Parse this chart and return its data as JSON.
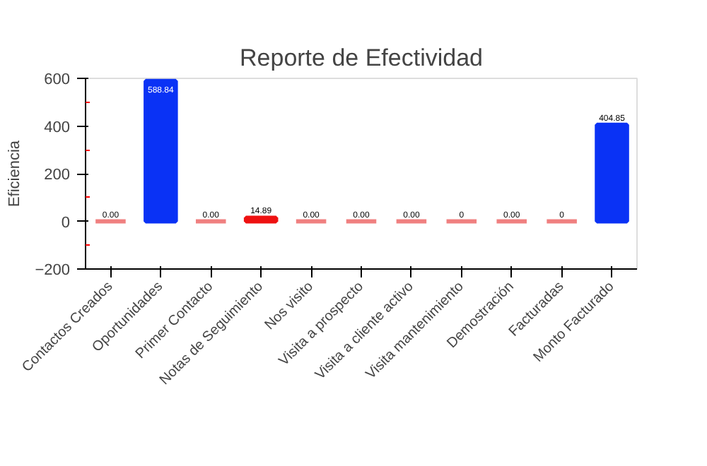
{
  "chart_data": {
    "type": "bar",
    "title": "Reporte de Efectividad",
    "ylabel": "Eficiencia",
    "categories": [
      "Contactos Creados",
      "Oportunidades",
      "Primer Contacto",
      "Notas de Seguimiento",
      "Nos visito",
      "Visita a prospecto",
      "Visita a cliente activo",
      "Visita mantenimiento",
      "Demostración",
      "Facturadas",
      "Monto Facturado"
    ],
    "values": [
      0,
      588.84,
      0,
      14.89,
      0,
      0,
      0,
      0,
      0,
      0,
      404.85
    ],
    "value_labels": [
      "0.00",
      "588.84",
      "0.00",
      "14.89",
      "0.00",
      "0.00",
      "0.00",
      "0",
      "0.00",
      "0",
      "404.85"
    ],
    "colors": [
      "#f08080",
      "#0a32f5",
      "#f08080",
      "#ee1111",
      "#f08080",
      "#f08080",
      "#f08080",
      "#f08080",
      "#f08080",
      "#f08080",
      "#0a32f5"
    ],
    "ylim": [
      -200,
      600
    ],
    "yticks": [
      -200,
      {
        "value": -100,
        "label": null
      },
      0,
      {
        "value": 100,
        "label": null
      },
      200,
      {
        "value": 300,
        "label": null
      },
      400,
      {
        "value": 500,
        "label": null
      },
      600
    ],
    "grid": false
  }
}
